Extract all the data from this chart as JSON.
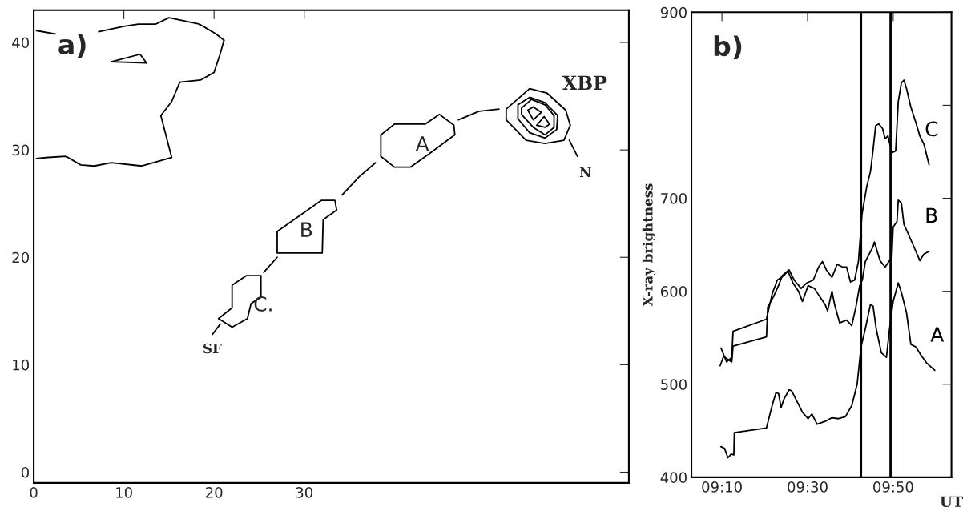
{
  "chart_data": [
    {
      "type": "line",
      "xlim": [
        0,
        66
      ],
      "ylim": [
        -1,
        43
      ],
      "xticks": [
        0,
        10,
        20,
        30
      ],
      "yticks": [
        0,
        10,
        20,
        30,
        40
      ],
      "annotations": [
        "a)",
        "XBP",
        "N",
        "SF",
        "A",
        "B",
        "C."
      ],
      "series": [
        {
          "color": "#000000",
          "x": [
            7.2,
            10.0,
            11.6,
            13.5,
            15.0,
            18.4,
            20.2,
            21.1
          ],
          "values": [
            41.0,
            41.5,
            41.7,
            41.7,
            42.3,
            41.7,
            40.8,
            40.2
          ]
        },
        {
          "color": "#000000",
          "x": [
            16.2,
            18.5,
            20.0,
            20.7,
            21.1
          ],
          "values": [
            36.3,
            36.5,
            37.2,
            39.0,
            40.2
          ]
        },
        {
          "color": "#000000",
          "x": [
            14.1,
            15.3,
            16.2
          ],
          "values": [
            33.2,
            34.5,
            36.3
          ]
        },
        {
          "color": "#000000",
          "x": [
            14.1,
            15.3
          ],
          "values": [
            33.2,
            29.3
          ]
        },
        {
          "color": "#000000",
          "x": [
            0.3,
            1.6,
            3.6,
            5.2,
            6.7,
            8.6,
            12.0,
            15.3
          ],
          "values": [
            29.2,
            29.3,
            29.4,
            28.6,
            28.5,
            28.8,
            28.5,
            29.3
          ]
        },
        {
          "color": "#000000",
          "x": [
            0.3,
            2.4
          ],
          "values": [
            41.1,
            40.8
          ]
        },
        {
          "color": "#000000",
          "x": [
            8.6,
            11.8,
            12.5
          ],
          "values": [
            38.2,
            38.9,
            38.1
          ]
        },
        {
          "color": "#000000",
          "x": [
            8.6,
            12.5
          ],
          "values": [
            38.2,
            38.1
          ]
        },
        {
          "color": "#000000",
          "x": [
            38.5,
            40.0,
            43.4,
            45.0,
            46.6,
            46.7
          ],
          "values": [
            31.4,
            32.4,
            32.4,
            33.3,
            32.3,
            31.4
          ]
        },
        {
          "color": "#000000",
          "x": [
            38.5,
            38.5,
            40.0,
            41.8,
            43.8,
            46.7
          ],
          "values": [
            31.4,
            29.4,
            28.4,
            28.4,
            29.6,
            31.4
          ]
        },
        {
          "color": "#000000",
          "x": [
            27.0,
            31.9,
            33.4,
            33.6
          ],
          "values": [
            22.4,
            25.3,
            25.3,
            24.4
          ]
        },
        {
          "color": "#000000",
          "x": [
            27.0,
            27.0,
            32.0,
            32.1,
            33.6
          ],
          "values": [
            22.4,
            20.4,
            20.4,
            23.5,
            24.4
          ]
        },
        {
          "color": "#000000",
          "x": [
            20.5,
            22.0,
            22.0,
            23.6,
            25.2,
            25.2
          ],
          "values": [
            14.3,
            15.3,
            17.4,
            18.3,
            18.3,
            16.3
          ]
        },
        {
          "color": "#000000",
          "x": [
            20.5,
            22.0,
            23.7,
            24.1,
            25.2
          ],
          "values": [
            14.3,
            13.5,
            14.3,
            15.7,
            16.3
          ]
        },
        {
          "color": "#000000",
          "x": [
            52.4,
            52.4,
            55.0,
            56.9,
            59.0,
            59.5
          ],
          "values": [
            32.8,
            33.8,
            35.7,
            35.3,
            33.7,
            32.3
          ]
        },
        {
          "color": "#000000",
          "x": [
            52.4,
            54.6,
            56.7,
            58.8,
            59.5
          ],
          "values": [
            32.8,
            30.9,
            30.6,
            30.9,
            32.3
          ]
        },
        {
          "color": "#000000",
          "x": [
            53.7,
            53.7,
            55.0,
            56.7,
            58.1
          ],
          "values": [
            32.9,
            34.2,
            34.9,
            34.4,
            33.2
          ]
        },
        {
          "color": "#000000",
          "x": [
            53.7,
            55.0,
            56.7,
            58.0,
            58.1
          ],
          "values": [
            32.9,
            31.6,
            31.1,
            31.9,
            33.2
          ]
        },
        {
          "color": "#000000",
          "x": [
            54.1,
            54.1,
            55.2,
            56.7,
            57.7
          ],
          "values": [
            33.3,
            33.9,
            34.7,
            34.2,
            33.2
          ]
        },
        {
          "color": "#000000",
          "x": [
            54.1,
            55.4,
            56.7,
            57.7,
            57.7
          ],
          "values": [
            33.3,
            32.1,
            31.4,
            32.1,
            33.2
          ]
        },
        {
          "color": "#000000",
          "x": [
            54.8,
            55.4,
            56.3
          ],
          "values": [
            33.7,
            34.0,
            33.5
          ]
        },
        {
          "color": "#000000",
          "x": [
            54.8,
            55.4,
            56.3
          ],
          "values": [
            33.7,
            32.8,
            33.5
          ]
        },
        {
          "color": "#000000",
          "x": [
            55.8,
            56.6,
            57.2
          ],
          "values": [
            32.3,
            33.1,
            32.4
          ]
        },
        {
          "color": "#000000",
          "x": [
            55.8,
            56.7,
            57.2
          ],
          "values": [
            32.3,
            32.1,
            32.4
          ]
        },
        {
          "color": "#000000",
          "x": [
            19.8,
            20.7,
            23.0,
            25.5,
            27.0,
            30.0,
            34.2,
            36.1,
            37.9,
            42.0,
            47.1,
            49.4,
            51.6,
            55.0,
            59.4,
            60.3
          ],
          "values": [
            12.8,
            13.8,
            null,
            18.6,
            20.0,
            null,
            25.8,
            27.5,
            28.8,
            null,
            32.8,
            33.6,
            33.8,
            null,
            30.9,
            29.4
          ]
        }
      ]
    },
    {
      "type": "line",
      "xlim": [
        9.048,
        10.06
      ],
      "ylim": [
        400,
        900
      ],
      "xticks": [
        {
          "value": 9.1667,
          "label": "09:10"
        },
        {
          "value": 9.5,
          "label": "09:30"
        },
        {
          "value": 9.8333,
          "label": "09:50"
        }
      ],
      "yticks": [
        400,
        500,
        600,
        700,
        {
          "value": 800,
          "label": null
        },
        900
      ],
      "xlabel": "UT",
      "ylabel": "X-ray brightness",
      "ref_lines": [
        {
          "axis": "x",
          "value": 9.708,
          "color": "#000000"
        },
        {
          "axis": "x",
          "value": 9.823,
          "color": "#000000"
        }
      ],
      "annotations": [
        "b)"
      ],
      "series": [
        {
          "name": "A",
          "color": "#000000",
          "x": [
            9.163,
            9.177,
            9.19,
            9.203,
            9.213,
            9.215,
            9.34,
            9.362,
            9.377,
            9.387,
            9.397,
            9.408,
            9.428,
            9.438,
            9.46,
            9.48,
            9.502,
            9.517,
            9.537,
            9.568,
            9.595,
            9.62,
            9.647,
            9.672,
            9.693,
            9.708,
            9.725,
            9.745,
            9.755,
            9.767,
            9.787,
            9.807,
            9.818,
            9.833,
            9.853,
            9.865,
            9.885,
            9.902,
            9.922,
            9.942,
            9.963,
            9.995
          ],
          "values": [
            433,
            431,
            421,
            425,
            424,
            448,
            453,
            477,
            491,
            490,
            475,
            484,
            494,
            493,
            481,
            470,
            463,
            468,
            457,
            460,
            464,
            463,
            465,
            477,
            500,
            540,
            560,
            586,
            584,
            560,
            534,
            529,
            557,
            589,
            609,
            599,
            577,
            543,
            540,
            531,
            523,
            515
          ]
        },
        {
          "name": "B",
          "color": "#000000",
          "x": [
            9.16,
            9.173,
            9.205,
            9.21,
            9.34,
            9.345,
            9.367,
            9.387,
            9.402,
            9.423,
            9.443,
            9.465,
            9.48,
            9.502,
            9.527,
            9.548,
            9.568,
            9.578,
            9.595,
            9.605,
            9.625,
            9.652,
            9.672,
            9.688,
            9.703,
            9.713,
            9.725,
            9.755,
            9.76,
            9.782,
            9.802,
            9.828,
            9.833,
            9.848,
            9.853,
            9.865,
            9.875,
            9.89,
            9.912,
            9.937,
            9.953,
            9.973
          ],
          "values": [
            520,
            530,
            524,
            541,
            551,
            583,
            594,
            606,
            617,
            622,
            609,
            600,
            589,
            606,
            603,
            594,
            586,
            579,
            600,
            586,
            566,
            569,
            563,
            583,
            606,
            612,
            632,
            648,
            653,
            633,
            626,
            637,
            669,
            675,
            698,
            695,
            672,
            663,
            649,
            633,
            640,
            643
          ]
        },
        {
          "name": "C",
          "color": "#000000",
          "x": [
            9.163,
            9.185,
            9.205,
            9.21,
            9.34,
            9.362,
            9.382,
            9.408,
            9.428,
            9.448,
            9.475,
            9.497,
            9.522,
            9.543,
            9.558,
            9.573,
            9.595,
            9.615,
            9.637,
            9.652,
            9.667,
            9.683,
            9.698,
            9.712,
            9.73,
            9.745,
            9.755,
            9.765,
            9.777,
            9.792,
            9.802,
            9.813,
            9.828,
            9.843,
            9.853,
            9.865,
            9.875,
            9.885,
            9.902,
            9.922,
            9.937,
            9.953,
            9.973
          ],
          "values": [
            539,
            524,
            529,
            557,
            570,
            597,
            612,
            617,
            623,
            612,
            603,
            609,
            612,
            626,
            632,
            623,
            615,
            629,
            626,
            626,
            610,
            612,
            632,
            683,
            712,
            729,
            752,
            778,
            780,
            775,
            764,
            767,
            749,
            751,
            804,
            824,
            827,
            818,
            798,
            781,
            767,
            758,
            736
          ]
        }
      ]
    }
  ]
}
